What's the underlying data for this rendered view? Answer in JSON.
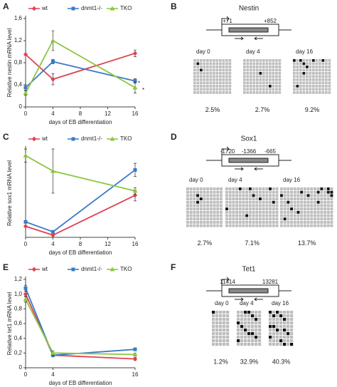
{
  "chart_data": [
    {
      "type": "line",
      "panel_label": "A",
      "ylabel": "Relative nestin mRNA level",
      "xlabel": "days of EB differentiation",
      "x": [
        0,
        4,
        16
      ],
      "xlim": [
        0,
        16
      ],
      "xticks": [
        0,
        4,
        8,
        12,
        16
      ],
      "ylim": [
        0,
        1.6
      ],
      "yticks": [
        0,
        {
          "value": 0.4,
          "label": "0,4"
        },
        {
          "value": 0.8,
          "label": "0,8"
        },
        {
          "value": 1.2,
          "label": "1,2"
        },
        {
          "value": 1.6,
          "label": "1,6"
        }
      ],
      "series": [
        {
          "name": "wt",
          "color": "#e0404f",
          "marker": "diamond",
          "values": [
            0.95,
            0.5,
            0.97
          ],
          "errors": [
            0,
            0.1,
            0.06
          ]
        },
        {
          "name": "dnmt1-/-",
          "color": "#3b7bc4",
          "marker": "square",
          "values": [
            0.35,
            0.82,
            0.47
          ],
          "errors": [
            0.05,
            0.04,
            0.04
          ]
        },
        {
          "name": "TKO",
          "color": "#8dc63f",
          "marker": "triangle",
          "values": [
            0.25,
            1.2,
            0.35
          ],
          "errors": [
            0.04,
            0.18,
            0.1
          ]
        }
      ],
      "annotations": [
        "*",
        "*"
      ]
    },
    {
      "type": "line",
      "panel_label": "C",
      "ylabel": "Relative sox1 mRNA level",
      "xlabel": "days of EB differentiation",
      "x": [
        0,
        4,
        16
      ],
      "xlim": [
        0,
        16
      ],
      "xticks": [
        0,
        4,
        8,
        12,
        16
      ],
      "ylim": [
        0,
        8
      ],
      "series": [
        {
          "name": "wt",
          "color": "#e0404f",
          "marker": "diamond",
          "values": [
            1.0,
            0.2,
            3.8
          ],
          "errors": [
            0,
            0.1,
            0.5
          ]
        },
        {
          "name": "dnmt1-/-",
          "color": "#3b7bc4",
          "marker": "square",
          "values": [
            1.4,
            0.5,
            6.1
          ],
          "errors": [
            0.1,
            0.1,
            0.6
          ]
        },
        {
          "name": "TKO",
          "color": "#8dc63f",
          "marker": "triangle",
          "values": [
            7.4,
            6.0,
            4.2
          ],
          "errors": [
            0.6,
            2.0,
            0.3
          ]
        }
      ]
    },
    {
      "type": "line",
      "panel_label": "E",
      "ylabel": "Relative tet1 mRNA level",
      "xlabel": "days of EB differentiation",
      "x": [
        0,
        4,
        16
      ],
      "xlim": [
        0,
        16
      ],
      "xticks": [
        0,
        4,
        16
      ],
      "ylim": [
        0,
        1.2
      ],
      "yticks": [
        0,
        {
          "value": 0.2,
          "label": "0,2"
        },
        {
          "value": 0.4,
          "label": "0,4"
        },
        {
          "value": 0.6,
          "label": "0,6"
        },
        {
          "value": 0.8,
          "label": "0,8"
        },
        {
          "value": 1.0,
          "label": "1,0"
        },
        {
          "value": 1.2,
          "label": "1,2"
        }
      ],
      "series": [
        {
          "name": "wt",
          "color": "#e0404f",
          "marker": "diamond",
          "values": [
            1.0,
            0.17,
            0.12
          ],
          "errors": [
            0.04,
            0.02,
            0.02
          ]
        },
        {
          "name": "dnmt1-/-",
          "color": "#3b7bc4",
          "marker": "square",
          "values": [
            1.08,
            0.17,
            0.25
          ],
          "errors": [
            0.04,
            0.02,
            0.02
          ]
        },
        {
          "name": "TKO",
          "color": "#8dc63f",
          "marker": "triangle",
          "values": [
            0.93,
            0.2,
            0.18
          ],
          "errors": [
            0.04,
            0.03,
            0.02
          ]
        }
      ]
    }
  ],
  "panels": [
    {
      "label": "B",
      "title": "Nestin",
      "positions": [
        "+71",
        "+852"
      ],
      "days": [
        "day 0",
        "day 4",
        "day 16"
      ],
      "percents": [
        "2.5%",
        "2.7%",
        "9.2%"
      ]
    },
    {
      "label": "D",
      "title": "Sox1",
      "positions": [
        "-1720",
        "-1366",
        "-665"
      ],
      "days": [
        "day 0",
        "day 4",
        "day 16"
      ],
      "percents": [
        "2.7%",
        "7.1%",
        "13.7%"
      ]
    },
    {
      "label": "F",
      "title": "Tet1",
      "positions": [
        "11414",
        "13281"
      ],
      "days": [
        "day 0",
        "day 4",
        "day 16"
      ],
      "percents": [
        "1.2%",
        "32.9%",
        "40.3%"
      ]
    }
  ]
}
